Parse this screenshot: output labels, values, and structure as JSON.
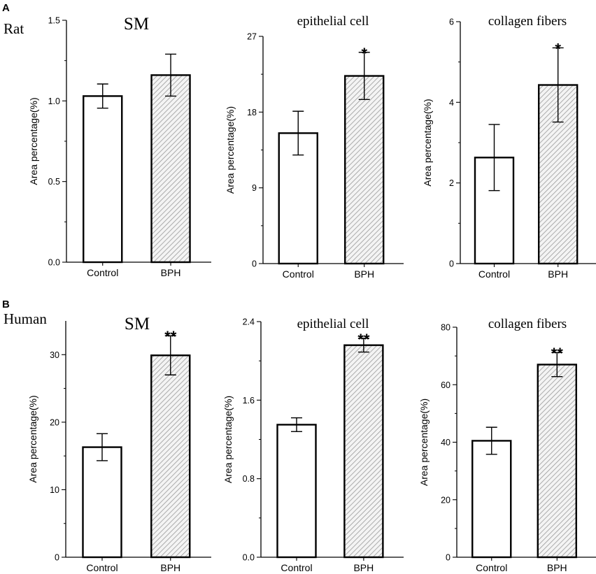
{
  "figure": {
    "panels": [
      {
        "letter": "A",
        "species": "Rat"
      },
      {
        "letter": "B",
        "species": "Human"
      }
    ]
  },
  "colors": {
    "axis": "#000000",
    "control_fill": "#ffffff",
    "bph_hatch": "#9a9a9a",
    "bph_bg": "#f4f4f4"
  },
  "chart_data": [
    {
      "type": "bar",
      "panel": "A",
      "title": "SM",
      "ylabel": "Area percentage(%)",
      "categories": [
        "Control",
        "BPH"
      ],
      "values": [
        1.03,
        1.16
      ],
      "errors": [
        0.075,
        0.13
      ],
      "ylim": [
        0,
        1.5
      ],
      "yticks": [
        0.0,
        0.5,
        1.0,
        1.5
      ],
      "tick_labels": [
        "0.0",
        "0.5",
        "1.0",
        "1.5"
      ],
      "significance": [
        "",
        ""
      ]
    },
    {
      "type": "bar",
      "panel": "A",
      "title": "epithelial cell",
      "ylabel": "Area percentage(%)",
      "categories": [
        "Control",
        "BPH"
      ],
      "values": [
        15.5,
        22.3
      ],
      "errors": [
        2.6,
        2.8
      ],
      "ylim": [
        0,
        27
      ],
      "yticks": [
        0,
        9,
        18,
        27
      ],
      "tick_labels": [
        "0",
        "9",
        "18",
        "27"
      ],
      "significance": [
        "",
        "*"
      ]
    },
    {
      "type": "bar",
      "panel": "A",
      "title": "collagen fibers",
      "ylabel": "Area percentage(%)",
      "categories": [
        "Control",
        "BPH"
      ],
      "values": [
        2.63,
        4.43
      ],
      "errors": [
        0.82,
        0.92
      ],
      "ylim": [
        0,
        6
      ],
      "yticks": [
        0,
        2,
        4,
        6
      ],
      "tick_labels": [
        "0",
        "2",
        "4",
        "6"
      ],
      "significance": [
        "",
        "*"
      ]
    },
    {
      "type": "bar",
      "panel": "B",
      "title": "SM",
      "ylabel": "Area percentage(%)",
      "categories": [
        "Control",
        "BPH"
      ],
      "values": [
        16.3,
        29.9
      ],
      "errors": [
        2.0,
        2.9
      ],
      "ylim": [
        0,
        35
      ],
      "yticks": [
        0,
        10,
        20,
        30
      ],
      "tick_labels": [
        "0",
        "10",
        "20",
        "30"
      ],
      "significance": [
        "",
        "**"
      ]
    },
    {
      "type": "bar",
      "panel": "B",
      "title": "epithelial cell",
      "ylabel": "Area percentage(%)",
      "categories": [
        "Control",
        "BPH"
      ],
      "values": [
        1.35,
        2.16
      ],
      "errors": [
        0.07,
        0.07
      ],
      "ylim": [
        0,
        2.4
      ],
      "yticks": [
        0.0,
        0.8,
        1.6,
        2.4
      ],
      "tick_labels": [
        "0.0",
        "0.8",
        "1.6",
        "2.4"
      ],
      "significance": [
        "",
        "**"
      ]
    },
    {
      "type": "bar",
      "panel": "B",
      "title": "collagen fibers",
      "ylabel": "Area percentage(%)",
      "categories": [
        "Control",
        "BPH"
      ],
      "values": [
        40.5,
        67.0
      ],
      "errors": [
        4.7,
        4.2
      ],
      "ylim": [
        0,
        80
      ],
      "yticks": [
        0,
        20,
        40,
        60,
        80
      ],
      "tick_labels": [
        "0",
        "20",
        "40",
        "60",
        "80"
      ],
      "significance": [
        "",
        "**"
      ]
    }
  ]
}
